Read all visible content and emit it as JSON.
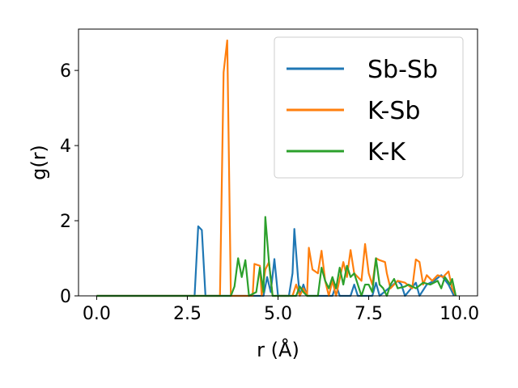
{
  "chart_data": {
    "type": "line",
    "xlabel": "r (Å)",
    "ylabel": "g(r)",
    "xlim": [
      -0.5,
      10.5
    ],
    "ylim": [
      0,
      7.1
    ],
    "xticks": [
      0.0,
      2.5,
      5.0,
      7.5,
      10.0
    ],
    "xtick_labels": [
      "0.0",
      "2.5",
      "5.0",
      "7.5",
      "10.0"
    ],
    "yticks": [
      0,
      2,
      4,
      6
    ],
    "ytick_labels": [
      "0",
      "2",
      "4",
      "6"
    ],
    "grid": false,
    "legend_position": "top-right",
    "series": [
      {
        "name": "Sb-Sb",
        "color": "#1f77b4",
        "points": [
          [
            0,
            0
          ],
          [
            2.7,
            0
          ],
          [
            2.8,
            1.85
          ],
          [
            2.9,
            1.75
          ],
          [
            3.0,
            0
          ],
          [
            4.6,
            0
          ],
          [
            4.7,
            0.5
          ],
          [
            4.8,
            0.1
          ],
          [
            4.9,
            0.98
          ],
          [
            5.0,
            0
          ],
          [
            5.3,
            0
          ],
          [
            5.4,
            0.6
          ],
          [
            5.45,
            1.78
          ],
          [
            5.55,
            0.5
          ],
          [
            5.6,
            0
          ],
          [
            5.7,
            0.3
          ],
          [
            5.8,
            0
          ],
          [
            6.5,
            0
          ],
          [
            6.6,
            0.3
          ],
          [
            6.7,
            0
          ],
          [
            7.0,
            0
          ],
          [
            7.1,
            0.3
          ],
          [
            7.2,
            0
          ],
          [
            7.6,
            0
          ],
          [
            7.7,
            0.35
          ],
          [
            7.8,
            0
          ],
          [
            8.3,
            0.4
          ],
          [
            8.4,
            0.3
          ],
          [
            8.5,
            0
          ],
          [
            8.8,
            0.35
          ],
          [
            8.9,
            0
          ],
          [
            9.1,
            0.3
          ],
          [
            9.3,
            0.4
          ],
          [
            9.5,
            0.55
          ],
          [
            9.7,
            0.3
          ],
          [
            9.85,
            0
          ]
        ]
      },
      {
        "name": "K-Sb",
        "color": "#ff7f0e",
        "points": [
          [
            0,
            0
          ],
          [
            3.4,
            0
          ],
          [
            3.5,
            5.95
          ],
          [
            3.6,
            6.8
          ],
          [
            3.7,
            0
          ],
          [
            4.3,
            0
          ],
          [
            4.35,
            0.85
          ],
          [
            4.5,
            0.8
          ],
          [
            4.55,
            0
          ],
          [
            4.65,
            0.7
          ],
          [
            4.75,
            0.9
          ],
          [
            4.85,
            0
          ],
          [
            5.4,
            0
          ],
          [
            5.5,
            0.3
          ],
          [
            5.6,
            0
          ],
          [
            5.7,
            0.2
          ],
          [
            5.8,
            0
          ],
          [
            5.85,
            1.28
          ],
          [
            5.95,
            0.7
          ],
          [
            6.1,
            0.6
          ],
          [
            6.2,
            1.2
          ],
          [
            6.3,
            0.4
          ],
          [
            6.4,
            0
          ],
          [
            6.5,
            0.4
          ],
          [
            6.6,
            0
          ],
          [
            6.8,
            0.9
          ],
          [
            6.9,
            0.5
          ],
          [
            7.0,
            1.22
          ],
          [
            7.1,
            0.6
          ],
          [
            7.3,
            0.4
          ],
          [
            7.4,
            1.38
          ],
          [
            7.5,
            0.6
          ],
          [
            7.6,
            0.3
          ],
          [
            7.7,
            1.0
          ],
          [
            7.8,
            0.95
          ],
          [
            7.95,
            0.9
          ],
          [
            8.0,
            0.6
          ],
          [
            8.1,
            0.2
          ],
          [
            8.3,
            0.4
          ],
          [
            8.5,
            0.35
          ],
          [
            8.7,
            0.2
          ],
          [
            8.8,
            0.97
          ],
          [
            8.9,
            0.9
          ],
          [
            9.0,
            0.3
          ],
          [
            9.1,
            0.55
          ],
          [
            9.25,
            0.4
          ],
          [
            9.4,
            0.55
          ],
          [
            9.55,
            0.5
          ],
          [
            9.7,
            0.65
          ],
          [
            9.8,
            0.2
          ],
          [
            9.9,
            0
          ]
        ]
      },
      {
        "name": "K-K",
        "color": "#2ca02c",
        "points": [
          [
            0,
            0
          ],
          [
            3.7,
            0
          ],
          [
            3.8,
            0.25
          ],
          [
            3.9,
            1.0
          ],
          [
            4.0,
            0.5
          ],
          [
            4.1,
            0.95
          ],
          [
            4.2,
            0
          ],
          [
            4.4,
            0.1
          ],
          [
            4.5,
            0.75
          ],
          [
            4.6,
            0.1
          ],
          [
            4.65,
            2.1
          ],
          [
            4.75,
            0.9
          ],
          [
            4.85,
            0
          ],
          [
            5.5,
            0
          ],
          [
            5.6,
            0.25
          ],
          [
            5.7,
            0.1
          ],
          [
            5.8,
            0
          ],
          [
            6.1,
            0
          ],
          [
            6.2,
            0.75
          ],
          [
            6.3,
            0.4
          ],
          [
            6.4,
            0.2
          ],
          [
            6.5,
            0.5
          ],
          [
            6.6,
            0.2
          ],
          [
            6.7,
            0.75
          ],
          [
            6.8,
            0.3
          ],
          [
            6.9,
            0.8
          ],
          [
            7.0,
            0.5
          ],
          [
            7.1,
            0.6
          ],
          [
            7.2,
            0.3
          ],
          [
            7.3,
            0
          ],
          [
            7.4,
            0.3
          ],
          [
            7.5,
            0.3
          ],
          [
            7.6,
            0.1
          ],
          [
            7.7,
            1.0
          ],
          [
            7.8,
            0.3
          ],
          [
            7.9,
            0.2
          ],
          [
            8.0,
            0
          ],
          [
            8.1,
            0.3
          ],
          [
            8.2,
            0.45
          ],
          [
            8.3,
            0.2
          ],
          [
            8.5,
            0.25
          ],
          [
            8.6,
            0.3
          ],
          [
            8.8,
            0.2
          ],
          [
            9.0,
            0.35
          ],
          [
            9.2,
            0.3
          ],
          [
            9.4,
            0.4
          ],
          [
            9.5,
            0.2
          ],
          [
            9.6,
            0.5
          ],
          [
            9.75,
            0.3
          ],
          [
            9.8,
            0.45
          ],
          [
            9.9,
            0
          ]
        ]
      }
    ]
  }
}
